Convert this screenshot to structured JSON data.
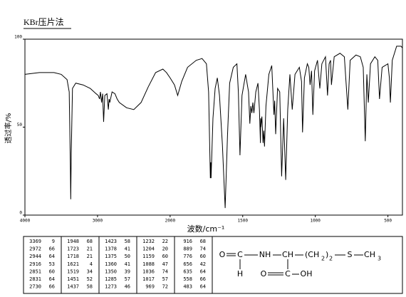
{
  "chart_data": {
    "type": "line",
    "title": "KBr压片法",
    "xlabel": "波数/cm⁻¹",
    "ylabel": "透过率/%",
    "xlim": [
      4000,
      400
    ],
    "xticks": [
      4000,
      3000,
      2000,
      1500,
      1000,
      500
    ],
    "ylim": [
      0,
      100
    ],
    "yticks": [
      0,
      50,
      100
    ],
    "grid": false,
    "series": [
      {
        "color": "#000000",
        "x": [
          4000,
          3800,
          3600,
          3500,
          3420,
          3390,
          3375,
          3369,
          3362,
          3345,
          3300,
          3200,
          3100,
          3020,
          2990,
          2972,
          2960,
          2944,
          2930,
          2916,
          2900,
          2870,
          2851,
          2840,
          2831,
          2800,
          2760,
          2730,
          2700,
          2600,
          2500,
          2400,
          2300,
          2200,
          2100,
          2050,
          2000,
          1970,
          1948,
          1920,
          1880,
          1820,
          1780,
          1750,
          1735,
          1723,
          1720,
          1718,
          1705,
          1690,
          1675,
          1660,
          1640,
          1621,
          1605,
          1590,
          1565,
          1540,
          1530,
          1519,
          1505,
          1480,
          1460,
          1451,
          1444,
          1437,
          1430,
          1423,
          1410,
          1395,
          1385,
          1378,
          1376,
          1375,
          1368,
          1360,
          1355,
          1350,
          1340,
          1320,
          1300,
          1285,
          1280,
          1273,
          1260,
          1245,
          1232,
          1218,
          1204,
          1190,
          1175,
          1159,
          1140,
          1110,
          1095,
          1088,
          1075,
          1055,
          1045,
          1036,
          1026,
          1017,
          1005,
          985,
          969,
          955,
          930,
          916,
          905,
          895,
          889,
          870,
          830,
          800,
          776,
          760,
          720,
          690,
          670,
          656,
          645,
          635,
          620,
          590,
          570,
          558,
          540,
          500,
          490,
          483,
          470,
          440,
          410,
          400
        ],
        "values": [
          80,
          81,
          81,
          80,
          77,
          70,
          30,
          9,
          35,
          72,
          75,
          74,
          72,
          69,
          68,
          66,
          70,
          64,
          69,
          53,
          68,
          69,
          60,
          66,
          64,
          70,
          69,
          66,
          64,
          61,
          60,
          64,
          73,
          81,
          83,
          81,
          78,
          74,
          68,
          76,
          84,
          88,
          89,
          86,
          70,
          21,
          30,
          21,
          55,
          72,
          78,
          68,
          40,
          4,
          45,
          75,
          84,
          86,
          70,
          34,
          68,
          80,
          70,
          52,
          62,
          58,
          64,
          58,
          70,
          75,
          60,
          41,
          55,
          50,
          56,
          41,
          48,
          39,
          62,
          80,
          85,
          57,
          65,
          46,
          72,
          70,
          22,
          55,
          20,
          60,
          80,
          60,
          80,
          84,
          76,
          47,
          78,
          86,
          84,
          74,
          82,
          57,
          82,
          88,
          72,
          86,
          90,
          68,
          86,
          88,
          74,
          90,
          92,
          90,
          60,
          88,
          91,
          90,
          84,
          42,
          80,
          64,
          86,
          90,
          88,
          66,
          84,
          86,
          78,
          64,
          88,
          96,
          96,
          95
        ]
      }
    ]
  },
  "peak_table": {
    "columns": [
      [
        [
          3369,
          9
        ],
        [
          2972,
          66
        ],
        [
          2944,
          64
        ],
        [
          2916,
          53
        ],
        [
          2851,
          60
        ],
        [
          2831,
          64
        ],
        [
          2730,
          66
        ]
      ],
      [
        [
          1948,
          68
        ],
        [
          1723,
          21
        ],
        [
          1718,
          21
        ],
        [
          1621,
          4
        ],
        [
          1519,
          34
        ],
        [
          1451,
          52
        ],
        [
          1437,
          58
        ]
      ],
      [
        [
          1423,
          58
        ],
        [
          1378,
          41
        ],
        [
          1375,
          50
        ],
        [
          1360,
          41
        ],
        [
          1350,
          39
        ],
        [
          1285,
          57
        ],
        [
          1273,
          46
        ]
      ],
      [
        [
          1232,
          22
        ],
        [
          1204,
          20
        ],
        [
          1159,
          60
        ],
        [
          1088,
          47
        ],
        [
          1036,
          74
        ],
        [
          1017,
          57
        ],
        [
          969,
          72
        ]
      ],
      [
        [
          916,
          68
        ],
        [
          889,
          74
        ],
        [
          776,
          60
        ],
        [
          656,
          42
        ],
        [
          635,
          64
        ],
        [
          558,
          66
        ],
        [
          483,
          64
        ]
      ]
    ]
  },
  "structure": {
    "atoms": [
      "O",
      "C",
      "NH",
      "CH",
      "(CH",
      "2",
      ")",
      "2",
      "S",
      "CH",
      "3",
      "H",
      "O",
      "C",
      "OH"
    ]
  }
}
